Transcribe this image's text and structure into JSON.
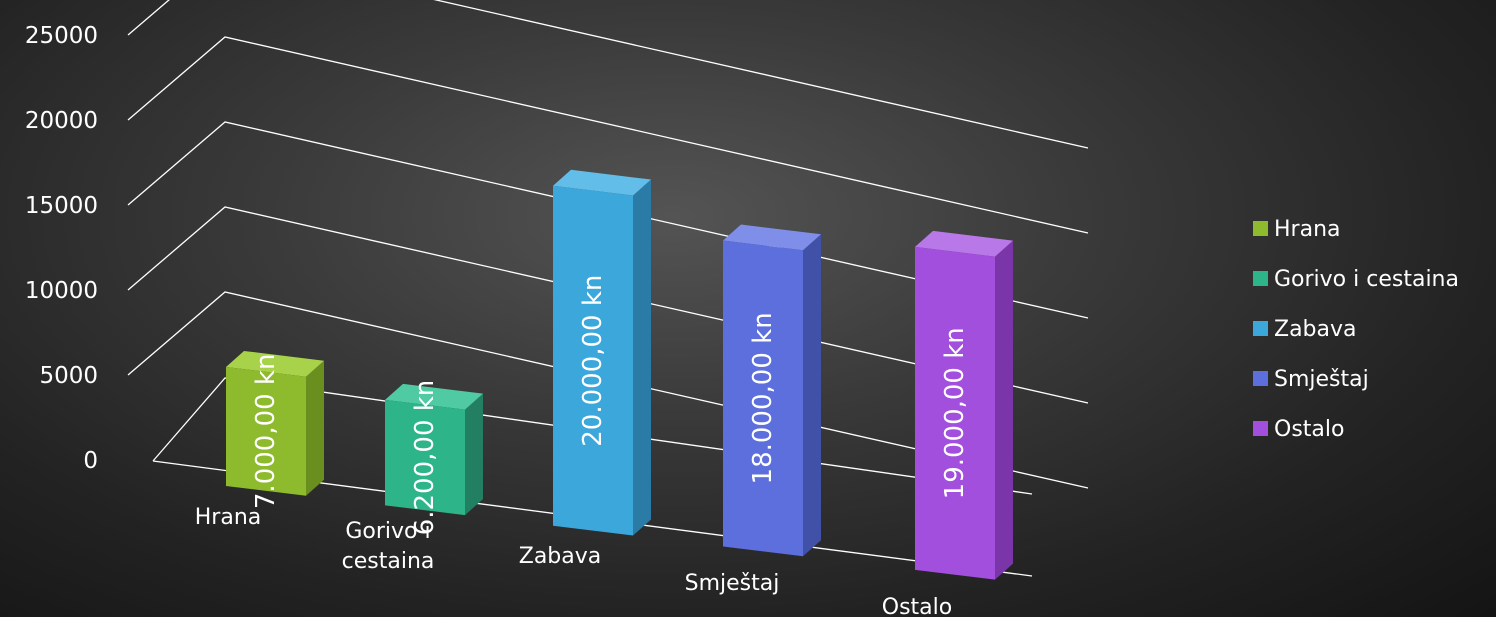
{
  "chart_data": {
    "type": "bar",
    "style": "3d-column",
    "categories": [
      "Hrana",
      "Gorivo i cestaina",
      "Zabava",
      "Smještaj",
      "Ostalo"
    ],
    "category_labels": [
      [
        "Hrana"
      ],
      [
        "Gorivo i",
        "cestaina"
      ],
      [
        "Zabava"
      ],
      [
        "Smještaj"
      ],
      [
        "Ostalo"
      ]
    ],
    "values": [
      7000,
      6200,
      20000,
      18000,
      19000
    ],
    "data_labels": [
      "7.000,00 kn",
      "6.200,00 kn",
      "20.000,00 kn",
      "18.000,00 kn",
      "19.000,00 kn"
    ],
    "colors": [
      "#8dbb2d",
      "#2eb489",
      "#3ca7db",
      "#5c6fdd",
      "#a14fdc"
    ],
    "side_colors": [
      "#6a8f1f",
      "#227f62",
      "#2a7ca6",
      "#4251a8",
      "#7a36a8"
    ],
    "top_colors": [
      "#a7d24a",
      "#4fcaa2",
      "#62bde8",
      "#7f8fe9",
      "#b978e8"
    ],
    "ylim": [
      0,
      25000
    ],
    "yticks": [
      0,
      5000,
      10000,
      15000,
      20000,
      25000
    ],
    "ytick_labels": [
      "0",
      "5000",
      "10000",
      "15000",
      "20000",
      "25000"
    ],
    "grid": true,
    "legend_position": "right",
    "legend": [
      "Hrana",
      "Gorivo i cestaina",
      "Zabava",
      "Smještaj",
      "Ostalo"
    ],
    "title": "",
    "xlabel": "",
    "ylabel": ""
  }
}
